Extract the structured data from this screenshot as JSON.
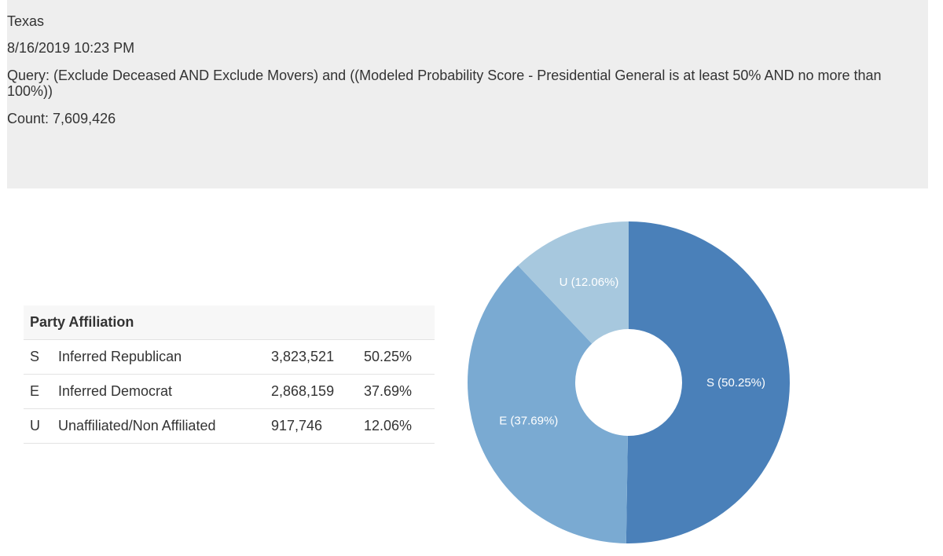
{
  "header": {
    "state": "Texas",
    "timestamp": "8/16/2019 10:23 PM",
    "query": "Query: (Exclude Deceased AND Exclude Movers) and ((Modeled Probability Score - Presidential General is at least 50% AND no more than 100%))",
    "count": "Count: 7,609,426"
  },
  "table": {
    "title": "Party Affiliation",
    "rows": [
      [
        "S",
        "Inferred Republican",
        "3,823,521",
        "50.25%"
      ],
      [
        "E",
        "Inferred Democrat",
        "2,868,159",
        "37.69%"
      ],
      [
        "U",
        "Unaffiliated/Non Affiliated",
        "917,746",
        "12.06%"
      ]
    ]
  },
  "chart_data": {
    "type": "pie",
    "categories": [
      "S",
      "E",
      "U"
    ],
    "values": [
      50.25,
      37.69,
      12.06
    ],
    "value_labels": [
      "S (50.25%)",
      "E (37.69%)",
      "U (12.06%)"
    ],
    "colors": [
      "#4a80b9",
      "#7aaad2",
      "#a7c8de"
    ]
  }
}
